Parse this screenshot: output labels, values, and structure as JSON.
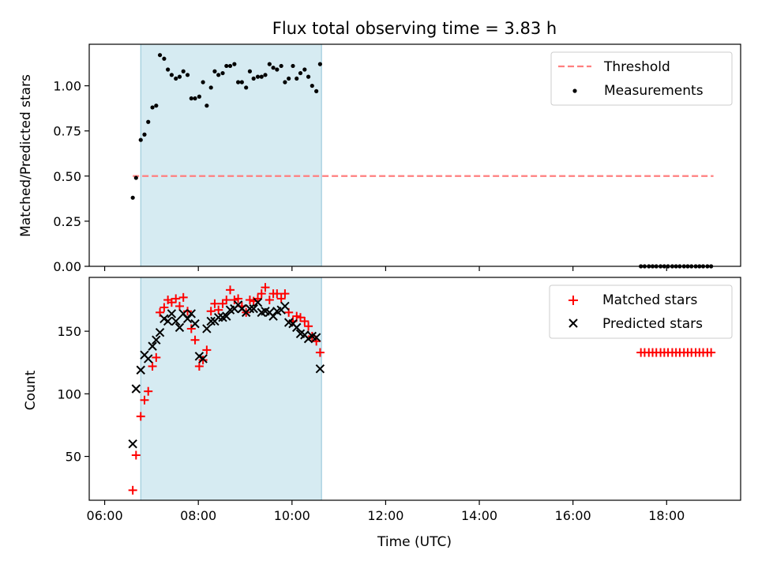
{
  "chart_data": [
    {
      "type": "scatter",
      "title": "Flux total observing time = 3.83 h",
      "xlabel": "",
      "ylabel": "Matched/Predicted stars",
      "xlim_hours": [
        5.67,
        19.58
      ],
      "ylim": [
        0.0,
        1.23
      ],
      "yticks": [
        0.0,
        0.25,
        0.5,
        0.75,
        1.0
      ],
      "ytick_labels": [
        "0.00",
        "0.25",
        "0.50",
        "0.75",
        "1.00"
      ],
      "shaded_span_hours": [
        6.77,
        10.63
      ],
      "legend_position": "top-right",
      "legend": [
        {
          "label": "Threshold",
          "marker": "dashed-line",
          "color": "#ff7f7f"
        },
        {
          "label": "Measurements",
          "marker": "dot",
          "color": "#000000"
        }
      ],
      "threshold": {
        "name": "Threshold",
        "y": 0.5,
        "x_range_hours": [
          6.6,
          19.0
        ],
        "color": "#ff7f7f"
      },
      "series": [
        {
          "name": "Measurements",
          "color": "#000000",
          "x_hours": [
            6.6,
            6.67,
            6.77,
            6.85,
            6.93,
            7.02,
            7.1,
            7.18,
            7.27,
            7.35,
            7.43,
            7.52,
            7.6,
            7.68,
            7.77,
            7.85,
            7.93,
            8.02,
            8.1,
            8.18,
            8.27,
            8.35,
            8.43,
            8.52,
            8.6,
            8.68,
            8.77,
            8.85,
            8.93,
            9.02,
            9.1,
            9.18,
            9.27,
            9.35,
            9.43,
            9.52,
            9.6,
            9.68,
            9.77,
            9.85,
            9.93,
            10.02,
            10.1,
            10.18,
            10.27,
            10.35,
            10.43,
            10.52,
            10.6,
            17.45,
            17.53,
            17.62,
            17.7,
            17.78,
            17.87,
            17.95,
            18.03,
            18.12,
            18.2,
            18.28,
            18.37,
            18.45,
            18.53,
            18.62,
            18.7,
            18.78,
            18.87,
            18.95
          ],
          "y": [
            0.38,
            0.49,
            0.7,
            0.73,
            0.8,
            0.88,
            0.89,
            1.17,
            1.15,
            1.09,
            1.06,
            1.04,
            1.05,
            1.08,
            1.06,
            0.93,
            0.93,
            0.94,
            1.02,
            0.89,
            0.99,
            1.08,
            1.06,
            1.07,
            1.11,
            1.11,
            1.12,
            1.02,
            1.02,
            0.99,
            1.08,
            1.04,
            1.05,
            1.05,
            1.06,
            1.12,
            1.1,
            1.09,
            1.11,
            1.02,
            1.04,
            1.11,
            1.04,
            1.07,
            1.09,
            1.05,
            1.0,
            0.97,
            1.12,
            0,
            0,
            0,
            0,
            0,
            0,
            0,
            0,
            0,
            0,
            0,
            0,
            0,
            0,
            0,
            0,
            0,
            0,
            0
          ]
        }
      ]
    },
    {
      "type": "scatter",
      "title": "",
      "xlabel": "Time (UTC)",
      "ylabel": "Count",
      "xlim_hours": [
        5.67,
        19.58
      ],
      "ylim": [
        15,
        193
      ],
      "yticks": [
        50,
        100,
        150
      ],
      "ytick_labels": [
        "50",
        "100",
        "150"
      ],
      "xticks_hours": [
        6,
        8,
        10,
        12,
        14,
        16,
        18
      ],
      "xtick_labels": [
        "06:00",
        "08:00",
        "10:00",
        "12:00",
        "14:00",
        "16:00",
        "18:00"
      ],
      "shaded_span_hours": [
        6.77,
        10.63
      ],
      "legend_position": "top-right",
      "legend": [
        {
          "label": "Matched stars",
          "marker": "plus",
          "color": "#ff0000"
        },
        {
          "label": "Predicted stars",
          "marker": "x",
          "color": "#000000"
        }
      ],
      "series": [
        {
          "name": "Matched stars",
          "color": "#ff0000",
          "marker": "plus",
          "x_hours": [
            6.6,
            6.67,
            6.77,
            6.85,
            6.93,
            7.02,
            7.1,
            7.18,
            7.27,
            7.35,
            7.43,
            7.52,
            7.6,
            7.68,
            7.77,
            7.85,
            7.93,
            8.02,
            8.1,
            8.18,
            8.27,
            8.35,
            8.43,
            8.52,
            8.6,
            8.68,
            8.77,
            8.85,
            8.93,
            9.02,
            9.1,
            9.18,
            9.27,
            9.35,
            9.43,
            9.52,
            9.6,
            9.68,
            9.77,
            9.85,
            9.93,
            10.02,
            10.1,
            10.18,
            10.27,
            10.35,
            10.43,
            10.52,
            10.6,
            17.45,
            17.53,
            17.62,
            17.7,
            17.78,
            17.87,
            17.95,
            18.03,
            18.12,
            18.2,
            18.28,
            18.37,
            18.45,
            18.53,
            18.62,
            18.7,
            18.78,
            18.87,
            18.95
          ],
          "y": [
            23,
            51,
            82,
            95,
            102,
            122,
            129,
            165,
            169,
            175,
            173,
            176,
            170,
            177,
            166,
            152,
            143,
            122,
            127,
            135,
            166,
            172,
            167,
            172,
            175,
            183,
            175,
            176,
            170,
            165,
            175,
            174,
            176,
            180,
            185,
            175,
            180,
            180,
            176,
            180,
            165,
            158,
            162,
            161,
            158,
            154,
            146,
            142,
            133,
            133,
            133,
            133,
            133,
            133,
            133,
            133,
            133,
            133,
            133,
            133,
            133,
            133,
            133,
            133,
            133,
            133,
            133,
            133
          ]
        },
        {
          "name": "Predicted stars",
          "color": "#000000",
          "marker": "x",
          "x_hours": [
            6.6,
            6.67,
            6.77,
            6.85,
            6.93,
            7.02,
            7.1,
            7.18,
            7.27,
            7.35,
            7.43,
            7.52,
            7.6,
            7.68,
            7.77,
            7.85,
            7.93,
            8.02,
            8.1,
            8.18,
            8.27,
            8.35,
            8.43,
            8.52,
            8.6,
            8.68,
            8.77,
            8.85,
            8.93,
            9.02,
            9.1,
            9.18,
            9.27,
            9.35,
            9.43,
            9.52,
            9.6,
            9.68,
            9.77,
            9.85,
            9.93,
            10.02,
            10.1,
            10.18,
            10.27,
            10.35,
            10.43,
            10.52,
            10.6
          ],
          "y": [
            60,
            104,
            119,
            131,
            128,
            138,
            143,
            149,
            160,
            158,
            164,
            158,
            153,
            164,
            160,
            164,
            156,
            130,
            128,
            152,
            158,
            158,
            161,
            161,
            162,
            167,
            168,
            171,
            168,
            165,
            168,
            168,
            173,
            165,
            166,
            165,
            162,
            166,
            167,
            170,
            157,
            156,
            153,
            148,
            147,
            144,
            146,
            145,
            120
          ]
        }
      ]
    }
  ]
}
